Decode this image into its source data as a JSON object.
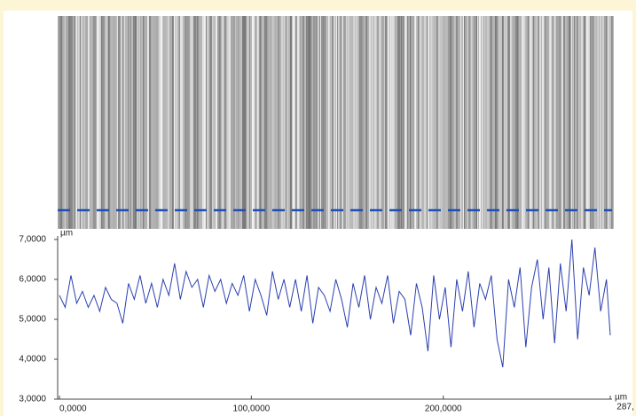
{
  "chart_data": {
    "type": "line",
    "y_label": "µm",
    "x_label": "µm",
    "x": [
      0,
      3,
      6,
      9,
      12,
      15,
      18,
      21,
      24,
      27,
      30,
      33,
      36,
      39,
      42,
      45,
      48,
      51,
      54,
      57,
      60,
      63,
      66,
      69,
      72,
      75,
      78,
      81,
      84,
      87,
      90,
      93,
      96,
      99,
      102,
      105,
      108,
      111,
      114,
      117,
      120,
      123,
      126,
      129,
      132,
      135,
      138,
      141,
      144,
      147,
      150,
      153,
      156,
      159,
      162,
      165,
      168,
      171,
      174,
      177,
      180,
      183,
      186,
      189,
      192,
      195,
      198,
      201,
      204,
      207,
      210,
      213,
      216,
      219,
      222,
      225,
      228,
      231,
      234,
      237,
      240,
      243,
      246,
      249,
      252,
      255,
      258,
      261,
      264,
      267,
      270,
      273,
      276,
      279,
      282,
      285,
      287
    ],
    "series": [
      {
        "color": "#2a3fb0",
        "values": [
          5.6,
          5.3,
          6.1,
          5.4,
          5.7,
          5.3,
          5.6,
          5.2,
          5.8,
          5.5,
          5.4,
          4.9,
          5.9,
          5.5,
          6.1,
          5.4,
          5.9,
          5.3,
          6.0,
          5.6,
          6.4,
          5.5,
          6.2,
          5.8,
          6.0,
          5.3,
          6.1,
          5.7,
          6.0,
          5.4,
          5.9,
          5.6,
          6.1,
          5.2,
          6.0,
          5.6,
          5.1,
          6.2,
          5.5,
          6.0,
          5.3,
          6.0,
          5.2,
          6.1,
          4.9,
          5.8,
          5.6,
          5.2,
          6.0,
          5.5,
          4.8,
          5.9,
          5.3,
          6.1,
          5.0,
          5.8,
          5.4,
          6.1,
          4.9,
          5.7,
          5.5,
          4.6,
          5.9,
          5.3,
          4.2,
          6.1,
          5.0,
          5.8,
          4.3,
          6.0,
          5.2,
          6.2,
          4.8,
          5.9,
          5.5,
          6.1,
          4.5,
          3.8,
          6.0,
          5.3,
          6.3,
          4.3,
          5.8,
          6.5,
          5.0,
          6.3,
          4.4,
          6.4,
          5.2,
          7.0,
          4.5,
          6.3,
          5.6,
          6.8,
          5.2,
          6.0,
          4.6
        ]
      }
    ],
    "xlim": [
      0,
      287
    ],
    "xticks": [
      {
        "value": 0,
        "label": "0,0000"
      },
      {
        "value": 100,
        "label": "100,0000"
      },
      {
        "value": 200,
        "label": "200,0000"
      },
      {
        "value": 287,
        "label": "287,"
      }
    ],
    "ylim": [
      3,
      7
    ],
    "yticks": [
      {
        "value": 3,
        "label": "3,0000"
      },
      {
        "value": 4,
        "label": "4,0000"
      },
      {
        "value": 5,
        "label": "5,0000"
      },
      {
        "value": 6,
        "label": "6,0000"
      },
      {
        "value": 7,
        "label": "7,0000"
      }
    ]
  }
}
